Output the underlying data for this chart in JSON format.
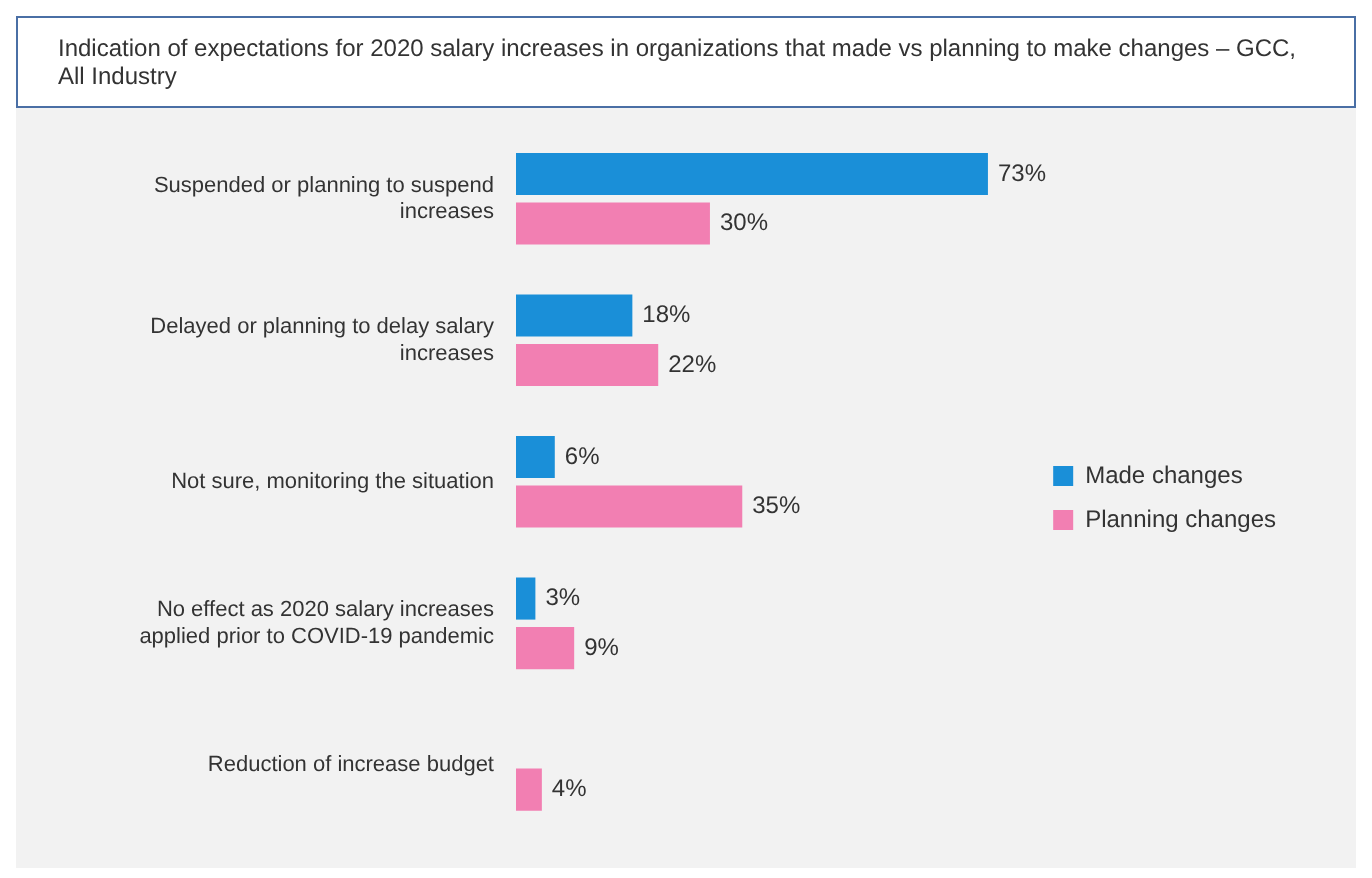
{
  "chart_data": {
    "type": "bar",
    "orientation": "horizontal",
    "title": "Indication of expectations for 2020 salary increases in organizations that made  vs planning to make changes – GCC, All Industry",
    "categories": [
      "Suspended or planning to suspend increases",
      "Delayed or planning to delay salary increases",
      "Not sure, monitoring the situation",
      "No effect as 2020 salary increases applied prior to COVID-19 pandemic",
      "Reduction of increase budget"
    ],
    "series": [
      {
        "name": "Made changes",
        "color": "#1a8fd8",
        "values": [
          73,
          18,
          6,
          3,
          null
        ],
        "value_labels": [
          "73%",
          "18%",
          "6%",
          "3%",
          null
        ]
      },
      {
        "name": "Planning changes",
        "color": "#f27fb2",
        "values": [
          30,
          22,
          35,
          9,
          4
        ],
        "value_labels": [
          "30%",
          "22%",
          "35%",
          "9%",
          "4%"
        ]
      }
    ],
    "grid": false,
    "legend": "right",
    "tick_labels": "y"
  }
}
